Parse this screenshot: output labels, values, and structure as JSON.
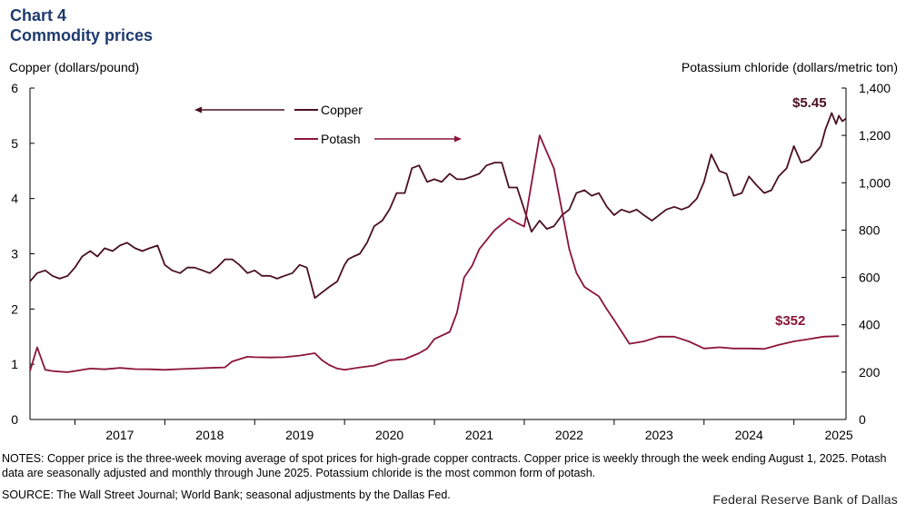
{
  "chart_label": "Chart 4",
  "chart_title": "Commodity prices",
  "chart_data": {
    "type": "line",
    "title": "Commodity prices",
    "left_axis_label": "Copper (dollars/pound)",
    "right_axis_label": "Potassium chloride (dollars/metric ton)",
    "left_ylim": [
      0,
      6
    ],
    "right_ylim": [
      0,
      1400
    ],
    "left_ticks": [
      "0",
      "1",
      "2",
      "3",
      "4",
      "5",
      "6"
    ],
    "right_ticks": [
      "0",
      "200",
      "400",
      "600",
      "800",
      "1,000",
      "1,200",
      "1,400"
    ],
    "x_range": [
      2016.5,
      2025.58
    ],
    "x_tick_labels": [
      "2017",
      "2018",
      "2019",
      "2020",
      "2021",
      "2022",
      "2023",
      "2024",
      "2025"
    ],
    "legend": [
      {
        "name": "Copper",
        "arrow": "left",
        "color": "#4a1020"
      },
      {
        "name": "Potash",
        "arrow": "right",
        "color": "#8b1538"
      }
    ],
    "annotations": [
      {
        "text": "$5.45",
        "series": "Copper",
        "color": "#4a1020"
      },
      {
        "text": "$352",
        "series": "Potash",
        "color": "#8b1538"
      }
    ],
    "series": [
      {
        "name": "Copper",
        "axis": "left",
        "color": "#4a1020",
        "x": [
          2016.5,
          2016.58,
          2016.67,
          2016.75,
          2016.83,
          2016.92,
          2017.0,
          2017.08,
          2017.17,
          2017.25,
          2017.33,
          2017.42,
          2017.5,
          2017.58,
          2017.67,
          2017.75,
          2017.83,
          2017.92,
          2018.0,
          2018.08,
          2018.17,
          2018.25,
          2018.33,
          2018.42,
          2018.5,
          2018.58,
          2018.67,
          2018.75,
          2018.83,
          2018.92,
          2019.0,
          2019.08,
          2019.17,
          2019.25,
          2019.33,
          2019.42,
          2019.5,
          2019.58,
          2019.67,
          2019.75,
          2019.83,
          2019.92,
          2020.0,
          2020.04,
          2020.1,
          2020.17,
          2020.25,
          2020.33,
          2020.42,
          2020.5,
          2020.58,
          2020.67,
          2020.75,
          2020.83,
          2020.92,
          2021.0,
          2021.08,
          2021.17,
          2021.25,
          2021.33,
          2021.42,
          2021.5,
          2021.58,
          2021.67,
          2021.75,
          2021.83,
          2021.92,
          2022.0,
          2022.08,
          2022.17,
          2022.25,
          2022.33,
          2022.42,
          2022.5,
          2022.58,
          2022.67,
          2022.75,
          2022.83,
          2022.92,
          2023.0,
          2023.08,
          2023.17,
          2023.25,
          2023.33,
          2023.42,
          2023.5,
          2023.58,
          2023.67,
          2023.75,
          2023.83,
          2023.92,
          2024.0,
          2024.08,
          2024.17,
          2024.25,
          2024.33,
          2024.42,
          2024.5,
          2024.58,
          2024.67,
          2024.75,
          2024.83,
          2024.92,
          2025.0,
          2025.08,
          2025.17,
          2025.25,
          2025.3,
          2025.35,
          2025.42,
          2025.47,
          2025.5,
          2025.54,
          2025.58
        ],
        "values": [
          2.5,
          2.65,
          2.7,
          2.6,
          2.55,
          2.6,
          2.75,
          2.95,
          3.05,
          2.95,
          3.1,
          3.05,
          3.15,
          3.2,
          3.1,
          3.05,
          3.1,
          3.15,
          2.8,
          2.7,
          2.65,
          2.75,
          2.75,
          2.7,
          2.65,
          2.75,
          2.9,
          2.9,
          2.8,
          2.65,
          2.7,
          2.6,
          2.6,
          2.55,
          2.6,
          2.65,
          2.8,
          2.75,
          2.2,
          2.3,
          2.4,
          2.5,
          2.8,
          2.9,
          2.95,
          3.0,
          3.2,
          3.5,
          3.6,
          3.8,
          4.1,
          4.1,
          4.55,
          4.6,
          4.3,
          4.35,
          4.3,
          4.45,
          4.35,
          4.35,
          4.4,
          4.45,
          4.6,
          4.65,
          4.65,
          4.2,
          4.2,
          3.8,
          3.4,
          3.6,
          3.45,
          3.5,
          3.7,
          3.8,
          4.1,
          4.15,
          4.05,
          4.1,
          3.85,
          3.7,
          3.8,
          3.75,
          3.8,
          3.7,
          3.6,
          3.7,
          3.8,
          3.85,
          3.8,
          3.85,
          4.0,
          4.3,
          4.8,
          4.5,
          4.45,
          4.05,
          4.1,
          4.4,
          4.25,
          4.1,
          4.15,
          4.4,
          4.55,
          4.95,
          4.65,
          4.7,
          4.85,
          4.95,
          5.25,
          5.55,
          5.35,
          5.5,
          5.4,
          5.45
        ]
      },
      {
        "name": "Potash",
        "axis": "right",
        "color": "#8b1538",
        "x": [
          2016.5,
          2016.58,
          2016.67,
          2016.75,
          2016.83,
          2016.92,
          2017.0,
          2017.17,
          2017.33,
          2017.5,
          2017.67,
          2017.83,
          2018.0,
          2018.17,
          2018.33,
          2018.5,
          2018.67,
          2018.75,
          2018.92,
          2019.0,
          2019.17,
          2019.33,
          2019.5,
          2019.67,
          2019.75,
          2019.83,
          2019.92,
          2020.0,
          2020.17,
          2020.33,
          2020.5,
          2020.67,
          2020.83,
          2020.92,
          2021.0,
          2021.17,
          2021.25,
          2021.33,
          2021.42,
          2021.5,
          2021.67,
          2021.83,
          2021.92,
          2022.0,
          2022.17,
          2022.33,
          2022.5,
          2022.58,
          2022.67,
          2022.75,
          2022.83,
          2022.92,
          2023.0,
          2023.17,
          2023.33,
          2023.5,
          2023.67,
          2023.83,
          2024.0,
          2024.17,
          2024.33,
          2024.5,
          2024.67,
          2024.83,
          2025.0,
          2025.17,
          2025.33,
          2025.5
        ],
        "values": [
          205,
          305,
          210,
          205,
          202,
          200,
          205,
          215,
          212,
          218,
          213,
          212,
          210,
          213,
          215,
          218,
          220,
          245,
          265,
          263,
          262,
          263,
          270,
          280,
          250,
          230,
          215,
          210,
          220,
          228,
          250,
          255,
          280,
          300,
          340,
          370,
          450,
          600,
          650,
          720,
          800,
          850,
          830,
          815,
          1200,
          1060,
          720,
          620,
          560,
          540,
          520,
          465,
          420,
          320,
          330,
          350,
          350,
          330,
          300,
          305,
          300,
          300,
          298,
          315,
          330,
          340,
          350,
          352
        ]
      }
    ]
  },
  "notes": "NOTES: Copper price is the three-week moving average of spot prices for high-grade copper contracts. Copper price is weekly through the week ending August 1, 2025. Potash data are seasonally adjusted and monthly through June 2025. Potassium chloride is the most common form of potash.",
  "source": "SOURCE: The Wall Street Journal; World Bank; seasonal adjustments by the Dallas Fed.",
  "credit": "Federal Reserve Bank of Dallas"
}
